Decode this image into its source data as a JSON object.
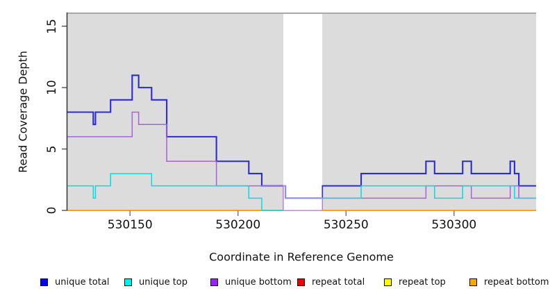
{
  "chart_data": {
    "type": "line",
    "subtype": "step",
    "title": "",
    "xlabel": "Coordinate in Reference Genome",
    "ylabel": "Read Coverage Depth",
    "xlim": [
      530121,
      530338
    ],
    "ylim": [
      0,
      16
    ],
    "xticks": [
      "530150",
      "530200",
      "530250",
      "530300"
    ],
    "ytick_values": [
      0,
      5,
      10,
      15
    ],
    "yticks": [
      "0",
      "5",
      "10",
      "15"
    ],
    "xtick_values": [
      530150,
      530200,
      530250,
      530300
    ],
    "grid": "off",
    "plot_background": "#DCDCDC",
    "gap_region": {
      "x_start": 530221,
      "x_end": 530239,
      "fill": "#FFFFFF",
      "overlay_alpha": 0.45
    },
    "series": [
      {
        "name": "unique total",
        "color": "#2B2BD5",
        "line_width": 2.1,
        "segments": [
          [
            [
              530121,
              8
            ],
            [
              530133,
              7
            ],
            [
              530134,
              8
            ],
            [
              530141,
              9
            ],
            [
              530151,
              11
            ],
            [
              530154,
              10
            ],
            [
              530160,
              9
            ],
            [
              530167,
              6
            ],
            [
              530190,
              4
            ],
            [
              530205,
              3
            ],
            [
              530211,
              2
            ],
            [
              530222,
              1
            ],
            [
              530239,
              2
            ],
            [
              530257,
              3
            ],
            [
              530287,
              4
            ],
            [
              530291,
              3
            ],
            [
              530304,
              4
            ],
            [
              530308,
              3
            ],
            [
              530326,
              4
            ],
            [
              530328,
              3
            ],
            [
              530330,
              2
            ],
            [
              530338,
              2
            ]
          ]
        ]
      },
      {
        "name": "unique bottom",
        "color": "#AA60D8",
        "line_width": 1.5,
        "segments": [
          [
            [
              530121,
              6
            ],
            [
              530151,
              8
            ],
            [
              530154,
              7
            ],
            [
              530167,
              4
            ],
            [
              530190,
              2
            ],
            [
              530221,
              0
            ],
            [
              530239,
              1
            ],
            [
              530287,
              2
            ],
            [
              530308,
              1
            ],
            [
              530326,
              2
            ],
            [
              530330,
              1
            ],
            [
              530338,
              1
            ]
          ]
        ]
      },
      {
        "name": "repeat total",
        "color": "#DD2222",
        "line_width": 1.2,
        "segments": [
          [
            [
              530121,
              0
            ],
            [
              530221,
              0
            ]
          ],
          [
            [
              530239,
              0
            ],
            [
              530338,
              0
            ]
          ]
        ]
      },
      {
        "name": "repeat top",
        "color": "#EEEE00",
        "line_width": 1.2,
        "segments": [
          [
            [
              530121,
              0
            ],
            [
              530221,
              0
            ]
          ],
          [
            [
              530239,
              0
            ],
            [
              530338,
              0
            ]
          ]
        ]
      },
      {
        "name": "repeat bottom",
        "color": "#FF9D0A",
        "line_width": 1.8,
        "segments": [
          [
            [
              530121,
              0
            ],
            [
              530221,
              0
            ]
          ],
          [
            [
              530239,
              0
            ],
            [
              530338,
              0
            ]
          ]
        ]
      },
      {
        "name": "unique top",
        "color": "#00DDE6",
        "line_width": 1.5,
        "segments": [
          [
            [
              530121,
              2
            ],
            [
              530133,
              1
            ],
            [
              530134,
              2
            ],
            [
              530141,
              3
            ],
            [
              530160,
              2
            ],
            [
              530205,
              1
            ],
            [
              530211,
              0
            ],
            [
              530221,
              0
            ]
          ],
          [
            [
              530239,
              1
            ],
            [
              530257,
              2
            ],
            [
              530291,
              1
            ],
            [
              530304,
              2
            ],
            [
              530328,
              1
            ],
            [
              530338,
              1
            ]
          ]
        ]
      }
    ],
    "legend_position": "bottom"
  },
  "legend": {
    "items": [
      {
        "label": "unique total",
        "color": "#0000EE"
      },
      {
        "label": "unique top",
        "color": "#00EEEE"
      },
      {
        "label": "unique bottom",
        "color": "#A020F0"
      },
      {
        "label": "repeat total",
        "color": "#EE0000"
      },
      {
        "label": "repeat top",
        "color": "#FFFF00"
      },
      {
        "label": "repeat bottom",
        "color": "#FFA500"
      }
    ]
  }
}
